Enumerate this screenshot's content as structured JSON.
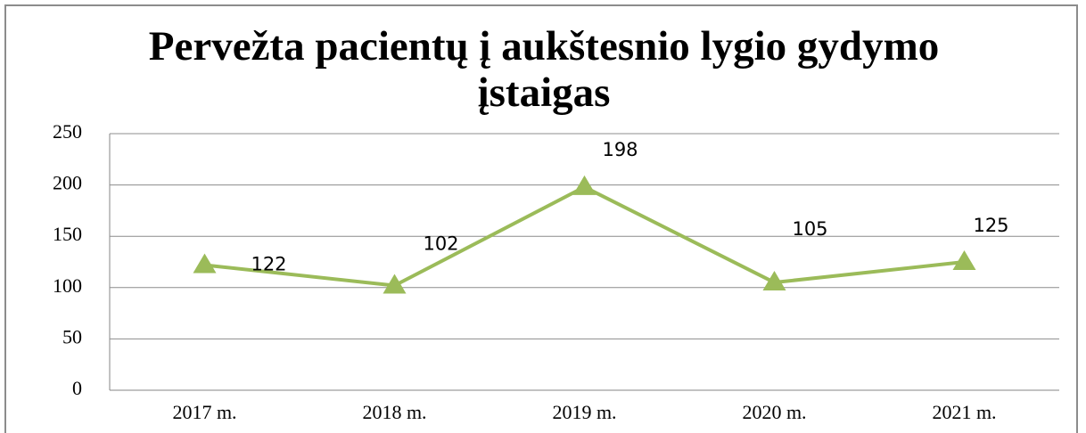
{
  "chart_data": {
    "type": "line",
    "title": "Pervežta pacientų į aukštesnio lygio gydymo įstaigas",
    "categories": [
      "2017 m.",
      "2018 m.",
      "2019 m.",
      "2020 m.",
      "2021 m."
    ],
    "values": [
      122,
      102,
      198,
      105,
      125
    ],
    "color": "#9bbb59",
    "ylim": [
      0,
      250
    ],
    "yticks": [
      0,
      50,
      100,
      150,
      200,
      250
    ],
    "grid": true
  }
}
